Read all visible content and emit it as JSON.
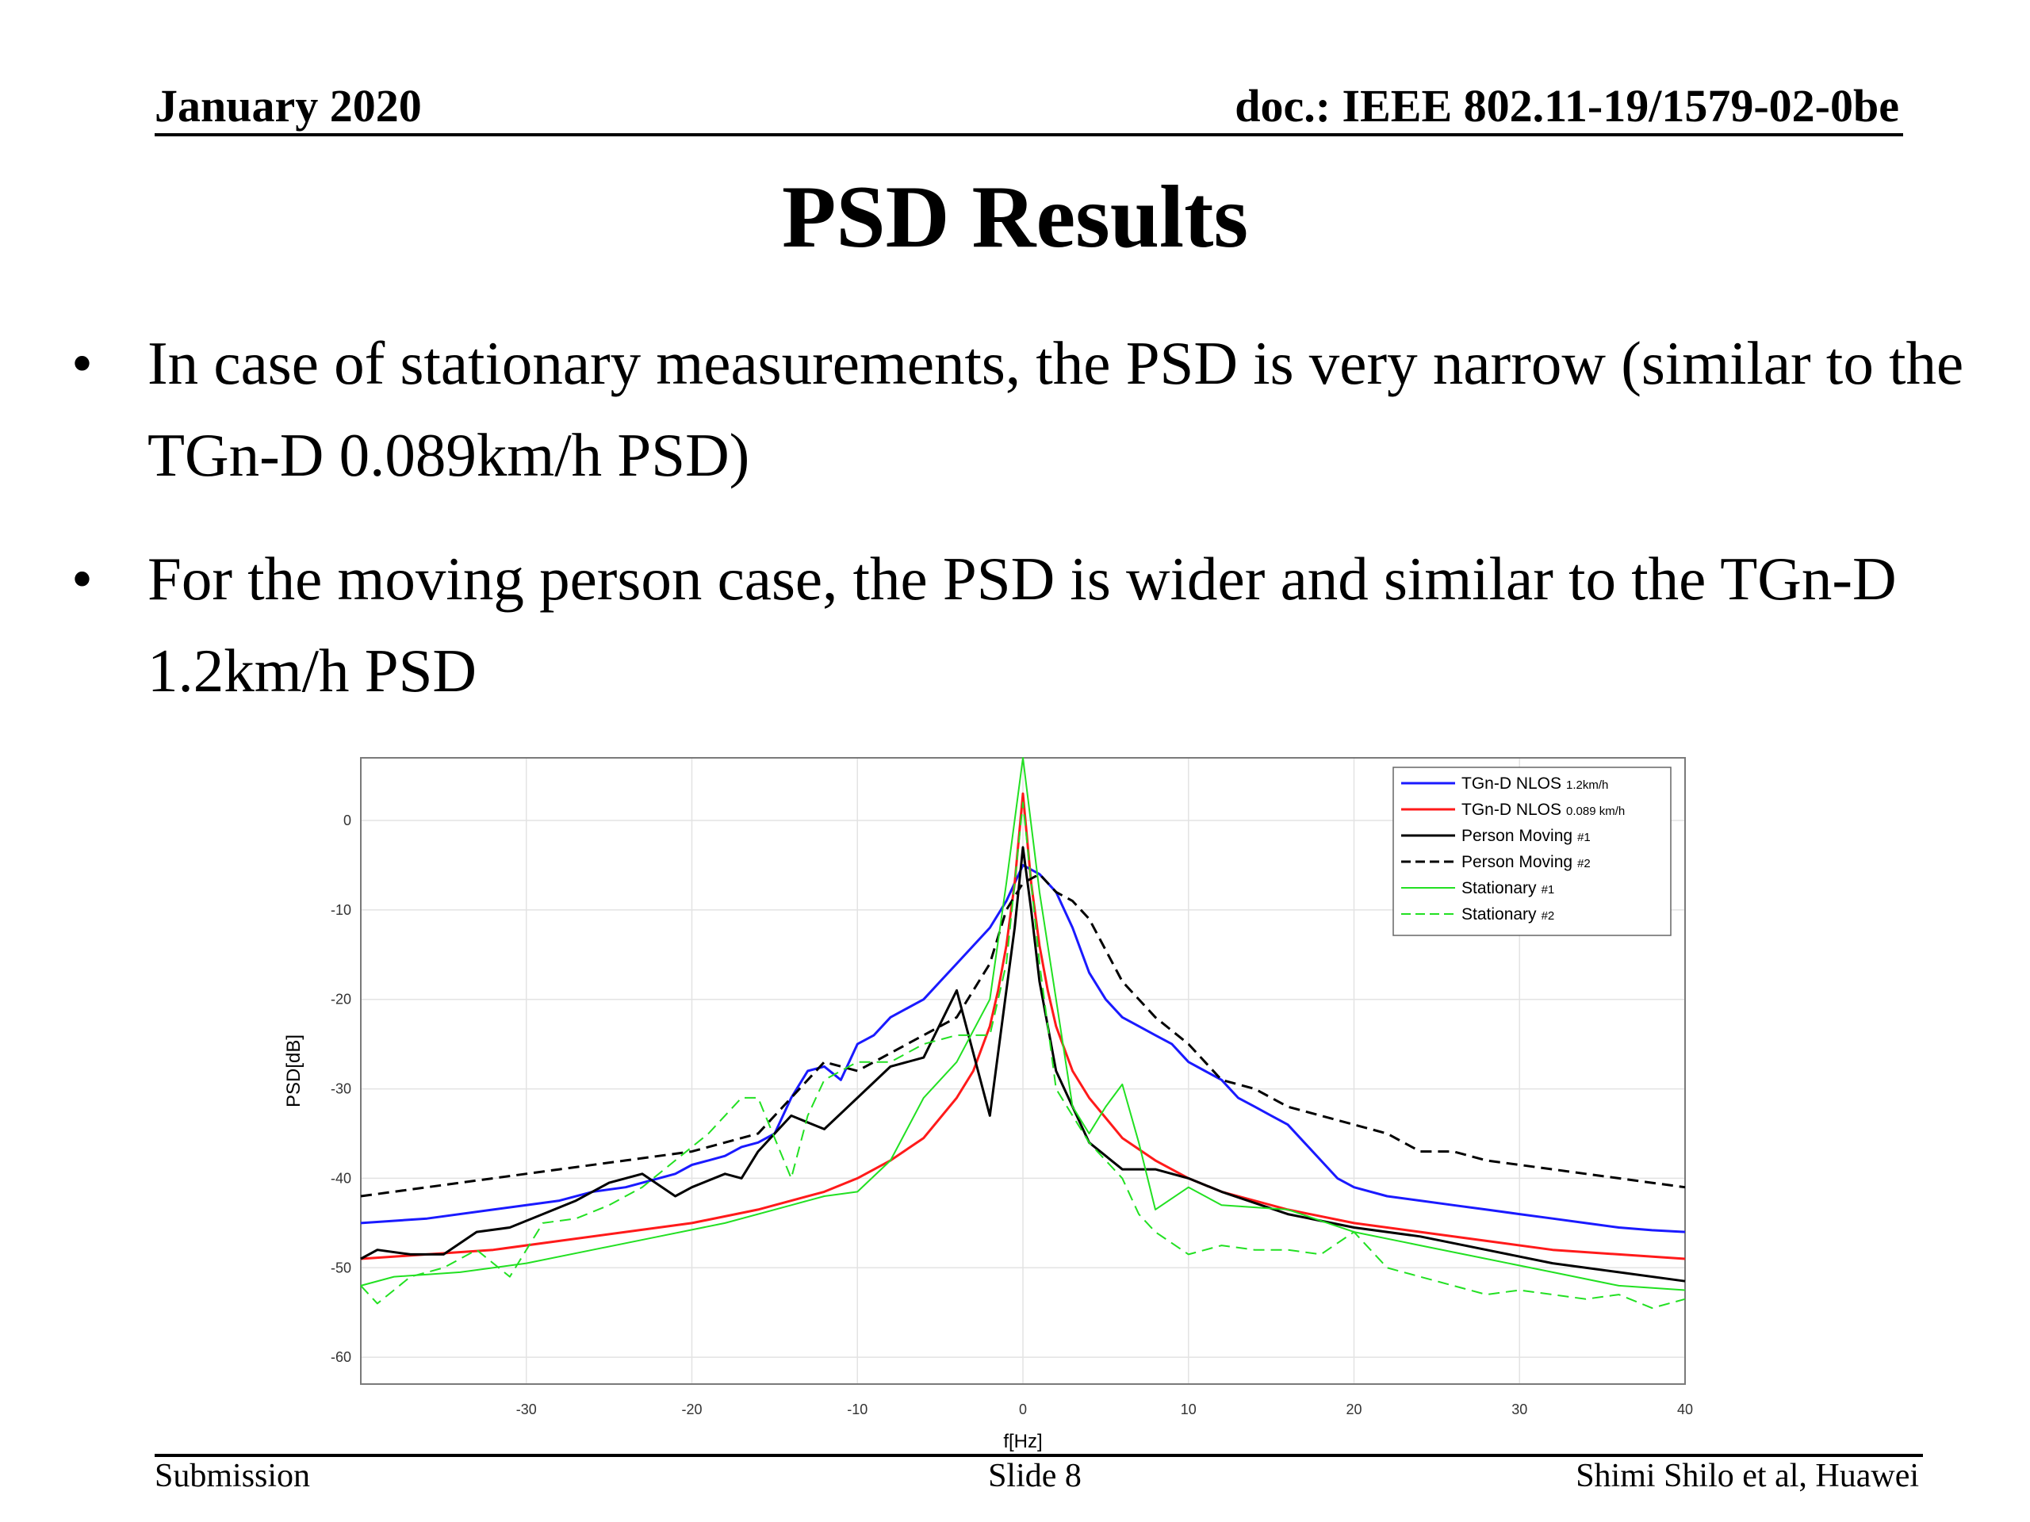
{
  "header": {
    "date": "January 2020",
    "doc": "doc.: IEEE 802.11-19/1579-02-0be"
  },
  "title": "PSD Results",
  "bullets": [
    {
      "marker": "•",
      "text": "In case of stationary measurements, the PSD is very narrow (similar to the TGn-D 0.089km/h PSD)"
    },
    {
      "marker": "•",
      "text": "For the moving person case, the PSD is wider and similar to the TGn-D 1.2km/h PSD"
    }
  ],
  "footer": {
    "left": "Submission",
    "center": "Slide 8",
    "right": "Shimi Shilo et al, Huawei"
  },
  "chart_data": {
    "type": "line",
    "title": "",
    "xlabel": "f[Hz]",
    "ylabel": "PSD[dB]",
    "xlim": [
      -40,
      40
    ],
    "ylim": [
      -63,
      7
    ],
    "xticks": [
      -30,
      -20,
      -10,
      0,
      10,
      20,
      30,
      40
    ],
    "yticks": [
      0,
      -10,
      -20,
      -30,
      -40,
      -50,
      -60
    ],
    "grid": true,
    "legend_position": "top-right",
    "series": [
      {
        "name": "TGn-D NLOS",
        "subscript": "1.2km/h",
        "color": "#1a1aff",
        "dash": "solid",
        "width": 3,
        "x": [
          -40,
          -36,
          -32,
          -28,
          -26,
          -24,
          -22,
          -21,
          -20,
          -19,
          -18,
          -17,
          -16,
          -15,
          -14,
          -13,
          -12,
          -11,
          -10,
          -9,
          -8,
          -7,
          -6,
          -5,
          -4,
          -3,
          -2,
          -1,
          0,
          1,
          2,
          3,
          4,
          5,
          6,
          7,
          8,
          9,
          10,
          11,
          12,
          13,
          14,
          15,
          16,
          17,
          18,
          19,
          20,
          22,
          24,
          26,
          28,
          30,
          32,
          34,
          36,
          38,
          40
        ],
        "y": [
          -45,
          -44.5,
          -43.5,
          -42.5,
          -41.5,
          -41,
          -40,
          -39.5,
          -38.5,
          -38,
          -37.5,
          -36.5,
          -36,
          -35,
          -31,
          -28,
          -27.5,
          -29,
          -25,
          -24,
          -22,
          -21,
          -20,
          -18,
          -16,
          -14,
          -12,
          -9,
          -5,
          -6,
          -8,
          -12,
          -17,
          -20,
          -22,
          -23,
          -24,
          -25,
          -27,
          -28,
          -29,
          -31,
          -32,
          -33,
          -34,
          -36,
          -38,
          -40,
          -41,
          -42,
          -42.5,
          -43,
          -43.5,
          -44,
          -44.5,
          -45,
          -45.5,
          -45.8,
          -46
        ]
      },
      {
        "name": "TGn-D NLOS",
        "subscript": "0.089 km/h",
        "color": "#ff1a1a",
        "dash": "solid",
        "width": 3,
        "x": [
          -40,
          -36,
          -32,
          -28,
          -24,
          -20,
          -16,
          -12,
          -10,
          -8,
          -6,
          -4,
          -3,
          -2,
          -1.5,
          -1,
          -0.5,
          0,
          0.5,
          1,
          1.5,
          2,
          3,
          4,
          6,
          8,
          10,
          12,
          16,
          20,
          24,
          28,
          32,
          36,
          40
        ],
        "y": [
          -49,
          -48.5,
          -48,
          -47,
          -46,
          -45,
          -43.5,
          -41.5,
          -40,
          -38,
          -35.5,
          -31,
          -28,
          -23,
          -19,
          -14,
          -7,
          3,
          -7,
          -14,
          -19,
          -23,
          -28,
          -31,
          -35.5,
          -38,
          -40,
          -41.5,
          -43.5,
          -45,
          -46,
          -47,
          -48,
          -48.5,
          -49
        ]
      },
      {
        "name": "Person Moving",
        "subscript": "#1",
        "color": "#000000",
        "dash": "solid",
        "width": 3,
        "x": [
          -40,
          -39,
          -37,
          -35,
          -33,
          -31,
          -29,
          -27,
          -25,
          -23,
          -21,
          -20,
          -18,
          -17,
          -16,
          -14,
          -12,
          -10,
          -8,
          -6,
          -4,
          -2,
          -1,
          -0.5,
          0,
          0.5,
          1,
          2,
          3,
          4,
          6,
          8,
          10,
          12,
          16,
          20,
          24,
          28,
          32,
          36,
          40
        ],
        "y": [
          -49,
          -48,
          -48.5,
          -48.5,
          -46,
          -45.5,
          -44,
          -42.5,
          -40.5,
          -39.5,
          -42,
          -41,
          -39.5,
          -40,
          -37,
          -33,
          -34.5,
          -31,
          -27.5,
          -26.5,
          -19,
          -33,
          -19,
          -12,
          -3,
          -10,
          -18,
          -28,
          -32,
          -36,
          -39,
          -39,
          -40,
          -41.5,
          -44,
          -45.5,
          -46.5,
          -48,
          -49.5,
          -50.5,
          -51.5
        ]
      },
      {
        "name": "Person Moving",
        "subscript": "#2",
        "color": "#000000",
        "dash": "dashed",
        "width": 3,
        "x": [
          -40,
          -36,
          -32,
          -28,
          -24,
          -20,
          -16,
          -14,
          -12,
          -10,
          -8,
          -6,
          -4,
          -2,
          -1,
          0,
          1,
          2,
          3,
          4,
          6,
          8,
          10,
          12,
          14,
          16,
          18,
          20,
          22,
          24,
          26,
          28,
          30,
          32,
          34,
          36,
          38,
          40
        ],
        "y": [
          -42,
          -41,
          -40,
          -39,
          -38,
          -37,
          -35,
          -31,
          -27,
          -28,
          -26,
          -24,
          -22,
          -16,
          -10,
          -7,
          -6,
          -8,
          -9,
          -11,
          -18,
          -22,
          -25,
          -29,
          -30,
          -32,
          -33,
          -34,
          -35,
          -37,
          -37,
          -38,
          -38.5,
          -39,
          -39.5,
          -40,
          -40.5,
          -41
        ]
      },
      {
        "name": "Stationary",
        "subscript": "#1",
        "color": "#22e022",
        "dash": "solid",
        "width": 2,
        "x": [
          -40,
          -38,
          -34,
          -30,
          -26,
          -22,
          -18,
          -14,
          -12,
          -10,
          -8,
          -6,
          -4,
          -2,
          -1,
          0,
          1,
          2,
          3,
          4,
          5,
          6,
          7,
          8,
          10,
          12,
          16,
          20,
          24,
          28,
          32,
          36,
          40
        ],
        "y": [
          -52,
          -51,
          -50.5,
          -49.5,
          -48,
          -46.5,
          -45,
          -43,
          -42,
          -41.5,
          -38,
          -31,
          -27,
          -20,
          -7,
          7,
          -8,
          -20,
          -32,
          -35,
          -32,
          -29.5,
          -36,
          -43.5,
          -41,
          -43,
          -43.5,
          -46,
          -47.5,
          -49,
          -50.5,
          -52,
          -52.5
        ]
      },
      {
        "name": "Stationary",
        "subscript": "#2",
        "color": "#22e022",
        "dash": "dashed",
        "width": 2,
        "x": [
          -40,
          -39,
          -37,
          -35,
          -33,
          -31,
          -29,
          -27,
          -25,
          -23,
          -21,
          -19,
          -17,
          -16,
          -14,
          -13,
          -12,
          -10,
          -8,
          -6,
          -4,
          -2,
          -1,
          0,
          1,
          2,
          3,
          4,
          5,
          6,
          7,
          8,
          10,
          12,
          14,
          16,
          18,
          20,
          22,
          24,
          26,
          28,
          30,
          32,
          34,
          36,
          38,
          40
        ],
        "y": [
          -52,
          -54,
          -51,
          -50,
          -48,
          -51,
          -45,
          -44.5,
          -43,
          -41,
          -38,
          -35,
          -31,
          -31,
          -40,
          -33,
          -29,
          -27,
          -27,
          -25,
          -24,
          -24,
          -16,
          2,
          -16,
          -30,
          -33,
          -36,
          -38,
          -40,
          -44,
          -46,
          -48.5,
          -47.5,
          -48,
          -48,
          -48.5,
          -46,
          -50,
          -51,
          -52,
          -53,
          -52.5,
          -53,
          -53.5,
          -53,
          -54.5,
          -53.5
        ]
      }
    ]
  }
}
